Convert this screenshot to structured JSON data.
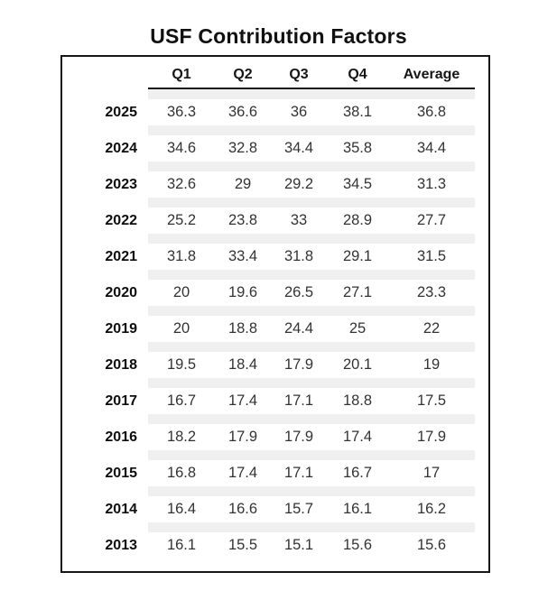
{
  "page_title": "USF Contribution Factors",
  "colors": {
    "background": "#ffffff",
    "border": "#161616",
    "stripe": "#f0f0f0",
    "header_text": "#161616",
    "value_text": "#333333"
  },
  "chart_data": {
    "type": "table",
    "title": "USF Contribution Factors",
    "columns": [
      "Q1",
      "Q2",
      "Q3",
      "Q4",
      "Average"
    ],
    "rows": [
      {
        "year": 2025,
        "values": [
          36.3,
          36.6,
          36,
          38.1,
          36.8
        ]
      },
      {
        "year": 2024,
        "values": [
          34.6,
          32.8,
          34.4,
          35.8,
          34.4
        ]
      },
      {
        "year": 2023,
        "values": [
          32.6,
          29,
          29.2,
          34.5,
          31.3
        ]
      },
      {
        "year": 2022,
        "values": [
          25.2,
          23.8,
          33,
          28.9,
          27.7
        ]
      },
      {
        "year": 2021,
        "values": [
          31.8,
          33.4,
          31.8,
          29.1,
          31.5
        ]
      },
      {
        "year": 2020,
        "values": [
          20,
          19.6,
          26.5,
          27.1,
          23.3
        ]
      },
      {
        "year": 2019,
        "values": [
          20,
          18.8,
          24.4,
          25,
          22
        ]
      },
      {
        "year": 2018,
        "values": [
          19.5,
          18.4,
          17.9,
          20.1,
          19
        ]
      },
      {
        "year": 2017,
        "values": [
          16.7,
          17.4,
          17.1,
          18.8,
          17.5
        ]
      },
      {
        "year": 2016,
        "values": [
          18.2,
          17.9,
          17.9,
          17.4,
          17.9
        ]
      },
      {
        "year": 2015,
        "values": [
          16.8,
          17.4,
          17.1,
          16.7,
          17
        ]
      },
      {
        "year": 2014,
        "values": [
          16.4,
          16.6,
          15.7,
          16.1,
          16.2
        ]
      },
      {
        "year": 2013,
        "values": [
          16.1,
          15.5,
          15.1,
          15.6,
          15.6
        ]
      }
    ],
    "layout": {
      "grid": "off",
      "header_underline": true,
      "row_separator_stripes": true,
      "outer_border": true
    }
  }
}
